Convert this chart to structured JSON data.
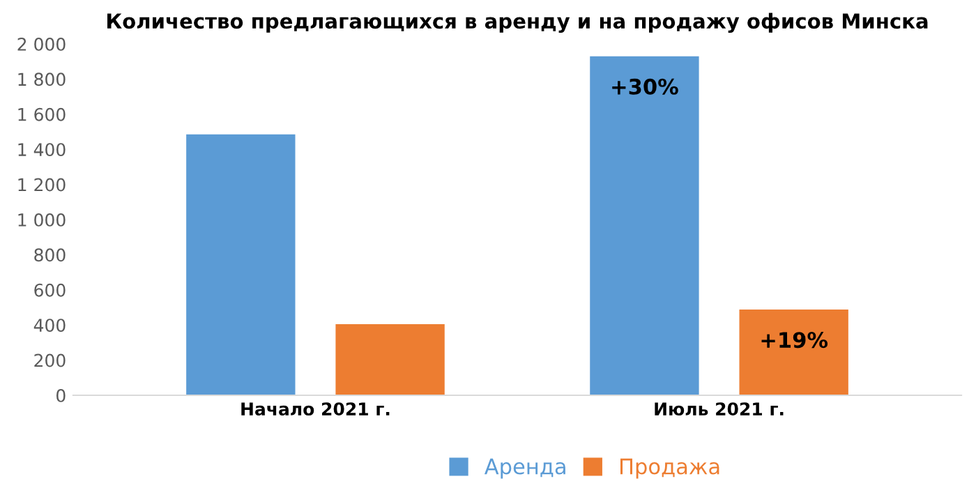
{
  "chart_data": {
    "type": "bar",
    "title": "Количество предлагающихся в аренду и на продажу офисов Минска",
    "categories": [
      "Начало 2021 г.",
      "Июль 2021 г."
    ],
    "series": [
      {
        "name": "Аренда",
        "color": "#5b9bd5",
        "values": [
          1485,
          1930
        ]
      },
      {
        "name": "Продажа",
        "color": "#ed7d31",
        "values": [
          405,
          488
        ]
      }
    ],
    "ylim": [
      0,
      2000
    ],
    "yticks": [
      0,
      200,
      400,
      600,
      800,
      {
        "value": 1000,
        "label": "1 000"
      },
      {
        "value": 1200,
        "label": "1 200"
      },
      {
        "value": 1400,
        "label": "1 400"
      },
      {
        "value": 1600,
        "label": "1 600"
      },
      {
        "value": 1800,
        "label": "1 800"
      },
      {
        "value": 2000,
        "label": "2 000"
      }
    ],
    "annotations": [
      "+30%",
      "+19%"
    ],
    "legend": "bottom",
    "grid": false
  }
}
